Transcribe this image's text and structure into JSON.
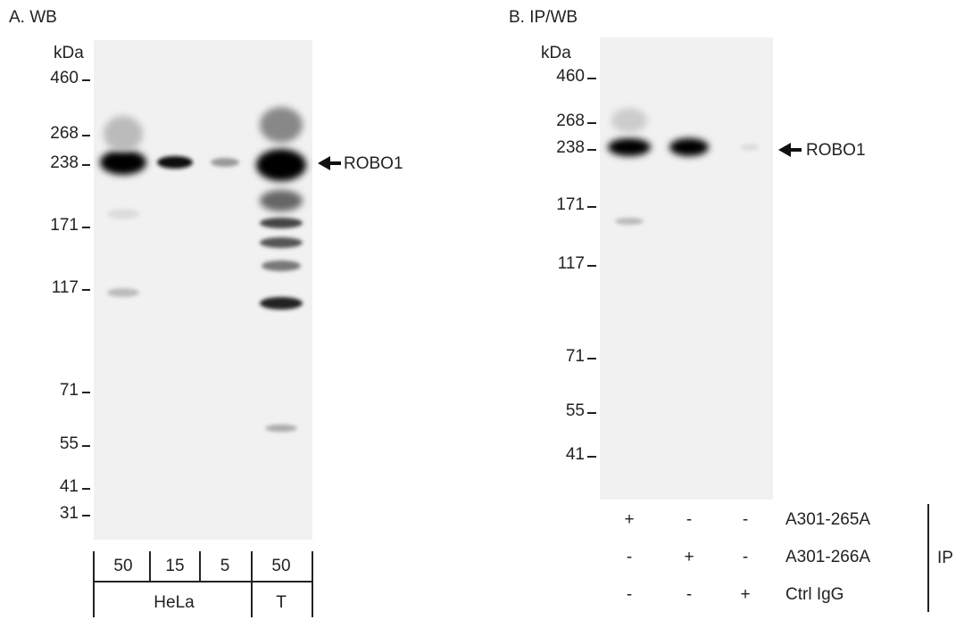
{
  "panel_a": {
    "label": "A. WB",
    "kda": "kDa",
    "markers": [
      "460",
      "268",
      "238",
      "171",
      "117",
      "71",
      "55",
      "41",
      "31"
    ],
    "target": "ROBO1",
    "loads": [
      "50",
      "15",
      "5",
      "50"
    ],
    "cell_lines": [
      "HeLa",
      "T"
    ]
  },
  "panel_b": {
    "label": "B. IP/WB",
    "kda": "kDa",
    "markers": [
      "460",
      "268",
      "238",
      "171",
      "117",
      "71",
      "55",
      "41"
    ],
    "target": "ROBO1",
    "antibodies": [
      {
        "name": "A301-265A",
        "marks": [
          "+",
          "-",
          "-"
        ]
      },
      {
        "name": "A301-266A",
        "marks": [
          "-",
          "+",
          "-"
        ]
      },
      {
        "name": "Ctrl IgG",
        "marks": [
          "-",
          "-",
          "+"
        ]
      }
    ],
    "ip_label": "IP"
  }
}
